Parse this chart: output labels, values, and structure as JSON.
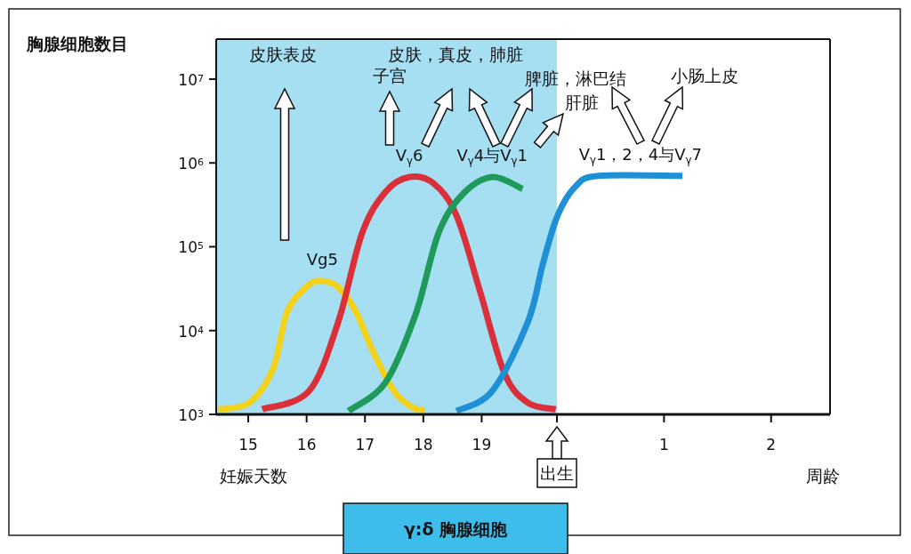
{
  "chart_data": {
    "type": "line",
    "title": "γ:δ 胸腺细胞",
    "xlabel": "妊娠天数",
    "ylabel": "胸腺细胞数目",
    "log": "y",
    "xlim": [
      14.45,
      24.97
    ],
    "ylim": [
      1000,
      30000000
    ],
    "xticks": [
      15,
      16,
      17,
      18,
      19,
      {
        "value": 20.29,
        "label": null
      }
    ],
    "x2lim": [
      -3.18,
      2.55
    ],
    "x2ticks": [
      1,
      2
    ],
    "x2label": "周龄",
    "yticks": [
      {
        "value": 1000,
        "label": "10$^{3}$"
      },
      {
        "value": 10000,
        "label": "10$^{4}$"
      },
      {
        "value": 100000,
        "label": "10$^{5}$"
      },
      {
        "value": 1000000,
        "label": "10$^{6}$"
      },
      {
        "value": 10000000,
        "label": "10$^{7}$"
      }
    ],
    "bands": [
      {
        "axis": "x",
        "from": 14.45,
        "to": 20.29,
        "color": "#a6def2"
      }
    ],
    "annotations": [
      "皮肤表皮",
      "子宫",
      "皮肤，真皮，肺脏",
      "脾脏，淋巴结",
      "肝脏",
      "小肠上皮",
      {
        "text": "出生",
        "x": 20.29,
        "y": 1000
      }
    ],
    "series": [
      {
        "name": "Vg5",
        "color": "#f2d21c",
        "x": [
          14.48,
          15.02,
          15.43,
          15.67,
          16.04,
          16.27,
          16.54,
          16.84,
          17.15,
          17.5,
          17.8,
          18.02
        ],
        "values": [
          1150,
          1380,
          3600,
          17000,
          35000,
          39000,
          33000,
          17000,
          5400,
          1900,
          1230,
          1100
        ]
      },
      {
        "name": "V$_{γ}$6",
        "color": "#d9303a",
        "x": [
          15.24,
          16.04,
          16.54,
          16.95,
          17.35,
          17.76,
          18.17,
          18.57,
          18.98,
          19.39,
          19.79,
          20.27
        ],
        "values": [
          1150,
          1900,
          12600,
          145000,
          450000,
          680000,
          575000,
          235000,
          28000,
          3100,
          1380,
          1150
        ]
      },
      {
        "name": "V$_{γ}$4与V$_{γ}$1",
        "color": "#1f9a5a",
        "x": [
          16.72,
          17.35,
          17.87,
          18.26,
          18.67,
          19.18,
          19.7
        ],
        "values": [
          1100,
          2400,
          15800,
          145000,
          420000,
          680000,
          490000
        ]
      },
      {
        "name": "V$_{γ}$1，2，4与V$_{γ}$7",
        "color": "#1f8fd6",
        "x": [
          18.57,
          19.18,
          19.79,
          20.05,
          20.3,
          20.61,
          21.0,
          22.44
        ],
        "values": [
          1100,
          1900,
          12600,
          63000,
          235000,
          525000,
          700000,
          700000
        ]
      }
    ]
  }
}
